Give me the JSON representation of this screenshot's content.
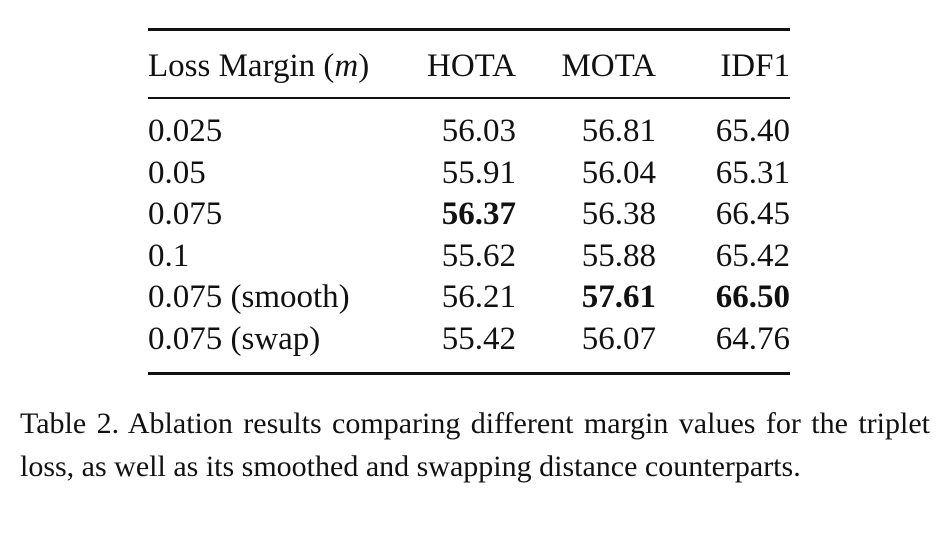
{
  "table": {
    "headers": {
      "margin_prefix": "Loss Margin (",
      "margin_var": "m",
      "margin_suffix": ")",
      "hota": "HOTA",
      "mota": "MOTA",
      "idf1": "IDF1"
    },
    "rows": [
      {
        "margin": "0.025",
        "hota": "56.03",
        "mota": "56.81",
        "idf1": "65.40",
        "bold": []
      },
      {
        "margin": "0.05",
        "hota": "55.91",
        "mota": "56.04",
        "idf1": "65.31",
        "bold": []
      },
      {
        "margin": "0.075",
        "hota": "56.37",
        "mota": "56.38",
        "idf1": "66.45",
        "bold": [
          "hota"
        ]
      },
      {
        "margin": "0.1",
        "hota": "55.62",
        "mota": "55.88",
        "idf1": "65.42",
        "bold": []
      },
      {
        "margin": "0.075 (smooth)",
        "hota": "56.21",
        "mota": "57.61",
        "idf1": "66.50",
        "bold": [
          "mota",
          "idf1"
        ]
      },
      {
        "margin": "0.075 (swap)",
        "hota": "55.42",
        "mota": "56.07",
        "idf1": "64.76",
        "bold": []
      }
    ]
  },
  "caption": "Table 2. Ablation results comparing different margin values for the triplet loss, as well as its smoothed and swapping distance counterparts."
}
